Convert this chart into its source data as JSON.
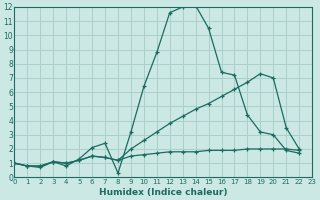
{
  "xlabel": "Humidex (Indice chaleur)",
  "background_color": "#cce8e4",
  "grid_color": "#aacfca",
  "line_color": "#1a6b60",
  "xlim": [
    0,
    23
  ],
  "ylim": [
    0,
    12
  ],
  "xtick_labels": [
    "0",
    "1",
    "2",
    "3",
    "4",
    "5",
    "6",
    "7",
    "8",
    "9",
    "10",
    "11",
    "12",
    "13",
    "14",
    "15",
    "16",
    "17",
    "18",
    "19",
    "20",
    "21",
    "22",
    "23"
  ],
  "xticks": [
    0,
    1,
    2,
    3,
    4,
    5,
    6,
    7,
    8,
    9,
    10,
    11,
    12,
    13,
    14,
    15,
    16,
    17,
    18,
    19,
    20,
    21,
    22,
    23
  ],
  "yticks": [
    0,
    1,
    2,
    3,
    4,
    5,
    6,
    7,
    8,
    9,
    10,
    11,
    12
  ],
  "series1_x": [
    0,
    1,
    2,
    3,
    4,
    5,
    6,
    7,
    8,
    9,
    10,
    11,
    12,
    13,
    14,
    15,
    16,
    17,
    18,
    19,
    20,
    21,
    22
  ],
  "series1_y": [
    1.0,
    0.8,
    0.7,
    1.1,
    0.8,
    1.3,
    2.1,
    2.4,
    0.3,
    3.2,
    6.4,
    8.8,
    11.6,
    12.0,
    12.1,
    10.5,
    7.4,
    7.2,
    4.4,
    3.2,
    3.0,
    1.9,
    1.7
  ],
  "series2_x": [
    0,
    1,
    2,
    3,
    4,
    5,
    6,
    7,
    8,
    9,
    10,
    11,
    12,
    13,
    14,
    15,
    16,
    17,
    18,
    19,
    20,
    21,
    22
  ],
  "series2_y": [
    1.0,
    0.8,
    0.8,
    1.1,
    1.0,
    1.2,
    1.5,
    1.4,
    1.2,
    2.0,
    2.6,
    3.2,
    3.8,
    4.3,
    4.8,
    5.2,
    5.7,
    6.2,
    6.7,
    7.3,
    7.0,
    3.5,
    2.0
  ],
  "series3_x": [
    0,
    1,
    2,
    3,
    4,
    5,
    6,
    7,
    8,
    9,
    10,
    11,
    12,
    13,
    14,
    15,
    16,
    17,
    18,
    19,
    20,
    21,
    22
  ],
  "series3_y": [
    1.0,
    0.8,
    0.8,
    1.1,
    1.0,
    1.2,
    1.5,
    1.4,
    1.2,
    1.5,
    1.6,
    1.7,
    1.8,
    1.8,
    1.8,
    1.9,
    1.9,
    1.9,
    2.0,
    2.0,
    2.0,
    2.0,
    1.9
  ]
}
